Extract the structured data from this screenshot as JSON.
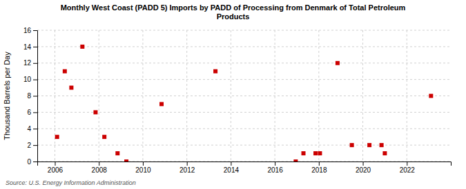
{
  "chart_data": {
    "type": "scatter",
    "title": "Monthly West Coast (PADD 5) Imports by PADD of Processing from Denmark of Total Petroleum\nProducts",
    "ylabel": "Thousand Barrels per Day",
    "annotations": [
      "Source: U.S. Energy Information Administration"
    ],
    "x": [
      2006.1,
      2006.45,
      2006.75,
      2007.25,
      2007.85,
      2008.25,
      2008.85,
      2009.25,
      2010.85,
      2013.3,
      2016.95,
      2017.3,
      2017.85,
      2018.05,
      2018.85,
      2019.5,
      2020.3,
      2020.85,
      2021.0,
      2023.1
    ],
    "values": [
      3,
      11,
      9,
      14,
      6,
      3,
      1,
      0,
      7,
      11,
      0,
      1,
      1,
      1,
      12,
      2,
      2,
      2,
      1,
      8
    ],
    "color": "#cc0000",
    "marker": "square",
    "xlim": [
      2005.2,
      2024.0
    ],
    "ylim": [
      0,
      16
    ],
    "xticks": [
      2006,
      2008,
      2010,
      2012,
      2014,
      2016,
      2018,
      2020,
      2022
    ],
    "yticks": [
      0,
      2,
      4,
      6,
      8,
      10,
      12,
      14,
      16
    ],
    "grid": true
  }
}
